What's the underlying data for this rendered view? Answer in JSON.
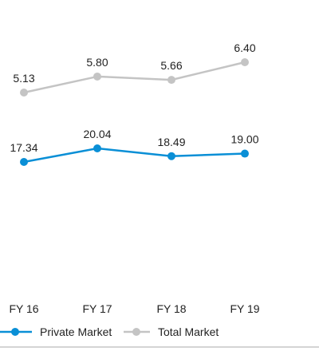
{
  "chart_data": {
    "type": "line",
    "categories": [
      "FY 16",
      "FY 17",
      "FY 18",
      "FY 19"
    ],
    "series": [
      {
        "name": "Private Market",
        "color": "#0a8fd6",
        "values": [
          17.34,
          20.04,
          18.49,
          19.0
        ],
        "labels": [
          "17.34",
          "20.04",
          "18.49",
          "19.00"
        ]
      },
      {
        "name": "Total Market",
        "color": "#c4c4c4",
        "values": [
          5.13,
          5.8,
          5.66,
          6.4
        ],
        "labels": [
          "5.13",
          "5.80",
          "5.66",
          "6.40"
        ]
      }
    ],
    "axis_line_color": "#aaaaaa",
    "grid": false,
    "legend_position": "bottom"
  }
}
